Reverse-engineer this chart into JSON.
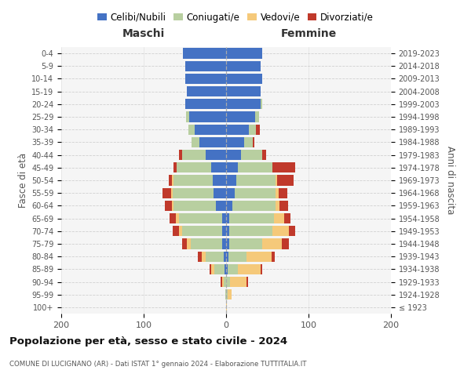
{
  "age_groups": [
    "100+",
    "95-99",
    "90-94",
    "85-89",
    "80-84",
    "75-79",
    "70-74",
    "65-69",
    "60-64",
    "55-59",
    "50-54",
    "45-49",
    "40-44",
    "35-39",
    "30-34",
    "25-29",
    "20-24",
    "15-19",
    "10-14",
    "5-9",
    "0-4"
  ],
  "birth_years": [
    "≤ 1923",
    "1924-1928",
    "1929-1933",
    "1934-1938",
    "1939-1943",
    "1944-1948",
    "1949-1953",
    "1954-1958",
    "1959-1963",
    "1964-1968",
    "1969-1973",
    "1974-1978",
    "1979-1983",
    "1984-1988",
    "1989-1993",
    "1994-1998",
    "1999-2003",
    "2004-2008",
    "2009-2013",
    "2014-2018",
    "2019-2023"
  ],
  "colors": {
    "celibe": "#4472c4",
    "coniugato": "#b8cfa0",
    "vedovo": "#f5c97a",
    "divorziato": "#c0392b"
  },
  "maschi": {
    "celibe": [
      0,
      0,
      0,
      2,
      3,
      5,
      5,
      5,
      12,
      15,
      16,
      18,
      25,
      32,
      38,
      45,
      50,
      48,
      50,
      50,
      52
    ],
    "coniugato": [
      0,
      1,
      3,
      12,
      22,
      38,
      48,
      52,
      52,
      50,
      48,
      42,
      28,
      10,
      8,
      4,
      0,
      0,
      0,
      0,
      0
    ],
    "vedovo": [
      0,
      0,
      2,
      4,
      5,
      5,
      4,
      4,
      2,
      2,
      2,
      0,
      0,
      0,
      0,
      0,
      0,
      0,
      0,
      0,
      0
    ],
    "divorziato": [
      0,
      0,
      2,
      2,
      4,
      5,
      8,
      8,
      8,
      10,
      4,
      4,
      4,
      0,
      0,
      0,
      0,
      0,
      0,
      0,
      0
    ]
  },
  "femmine": {
    "nubile": [
      0,
      0,
      0,
      2,
      3,
      4,
      4,
      4,
      8,
      10,
      12,
      14,
      18,
      22,
      28,
      35,
      42,
      42,
      44,
      42,
      44
    ],
    "coniugata": [
      0,
      2,
      5,
      12,
      22,
      40,
      52,
      54,
      52,
      50,
      48,
      42,
      26,
      10,
      8,
      5,
      2,
      0,
      0,
      0,
      0
    ],
    "vedova": [
      1,
      5,
      20,
      28,
      30,
      24,
      20,
      12,
      5,
      4,
      2,
      0,
      0,
      0,
      0,
      0,
      0,
      0,
      0,
      0,
      0
    ],
    "divorziata": [
      0,
      0,
      2,
      2,
      4,
      8,
      8,
      8,
      10,
      10,
      20,
      28,
      5,
      2,
      5,
      0,
      0,
      0,
      0,
      0,
      0
    ]
  },
  "title": "Popolazione per età, sesso e stato civile - 2024",
  "subtitle": "COMUNE DI LUCIGNANO (AR) - Dati ISTAT 1° gennaio 2024 - Elaborazione TUTTITALIA.IT",
  "ylabel_left": "Fasce di età",
  "ylabel_right": "Anni di nascita",
  "xlim": 200,
  "legend_labels": [
    "Celibi/Nubili",
    "Coniugati/e",
    "Vedovi/e",
    "Divorziati/e"
  ],
  "maschi_label": "Maschi",
  "femmine_label": "Femmine",
  "bg_color": "#f5f5f5"
}
